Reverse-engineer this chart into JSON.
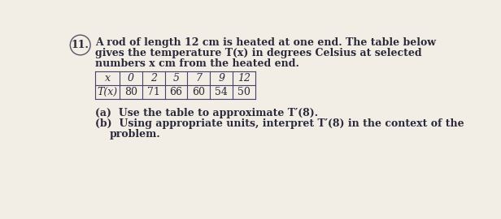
{
  "problem_number": "11.",
  "intro_lines": [
    "A rod of length 12 cm is heated at one end. The table below",
    "gives the temperature T(x) in degrees Celsius at selected",
    "numbers x cm from the heated end."
  ],
  "table_x_label": "x",
  "table_tx_label": "T(x)",
  "x_values": [
    "0",
    "2",
    "5",
    "7",
    "9",
    "12"
  ],
  "tx_values": [
    "80",
    "71",
    "66",
    "60",
    "54",
    "50"
  ],
  "part_a": "(a)  Use the table to approximate T′(8).",
  "part_b_line1": "(b)  Using appropriate units, interpret T′(8) in the context of the",
  "part_b_line2": "problem.",
  "bg_color": "#f2ede5",
  "text_color": "#2a2a3a",
  "font_size": 9.0
}
